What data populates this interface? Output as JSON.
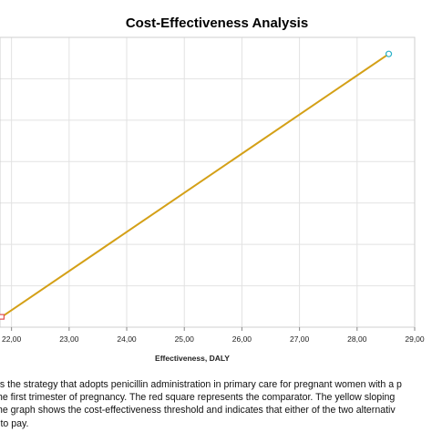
{
  "chart_data": {
    "type": "line",
    "title": "Cost-Effectiveness Analysis",
    "xlabel": "Effectiveness, DALY",
    "ylabel": "",
    "xlim": [
      21.8,
      29.0
    ],
    "ylim": [
      0,
      7
    ],
    "x_ticks": [
      22.0,
      23.0,
      24.0,
      25.0,
      26.0,
      27.0,
      28.0,
      29.0
    ],
    "x_tick_labels": [
      "22,00",
      "23,00",
      "24,00",
      "25,00",
      "26,00",
      "27,00",
      "28,00",
      "29,00"
    ],
    "y_gridlines": [
      0,
      1,
      2,
      3,
      4,
      5,
      6,
      7
    ],
    "grid": true,
    "series": [
      {
        "color": "#d4a017",
        "x": [
          21.83,
          28.55
        ],
        "y": [
          0.25,
          6.6
        ]
      }
    ],
    "points": [
      {
        "marker": "square",
        "color": "#e05050",
        "x": 21.83,
        "y": 0.25
      },
      {
        "marker": "circle",
        "color": "#2ab0c8",
        "x": 28.55,
        "y": 6.6
      }
    ]
  },
  "caption": {
    "lines": [
      "es the strategy that adopts penicillin administration in primary care for pregnant women with a p",
      "the first trimester of pregnancy. The red square represents the comparator. The yellow sloping",
      " the graph shows the cost-effectiveness threshold and indicates that either of the two alternativ",
      "- to pay."
    ]
  }
}
